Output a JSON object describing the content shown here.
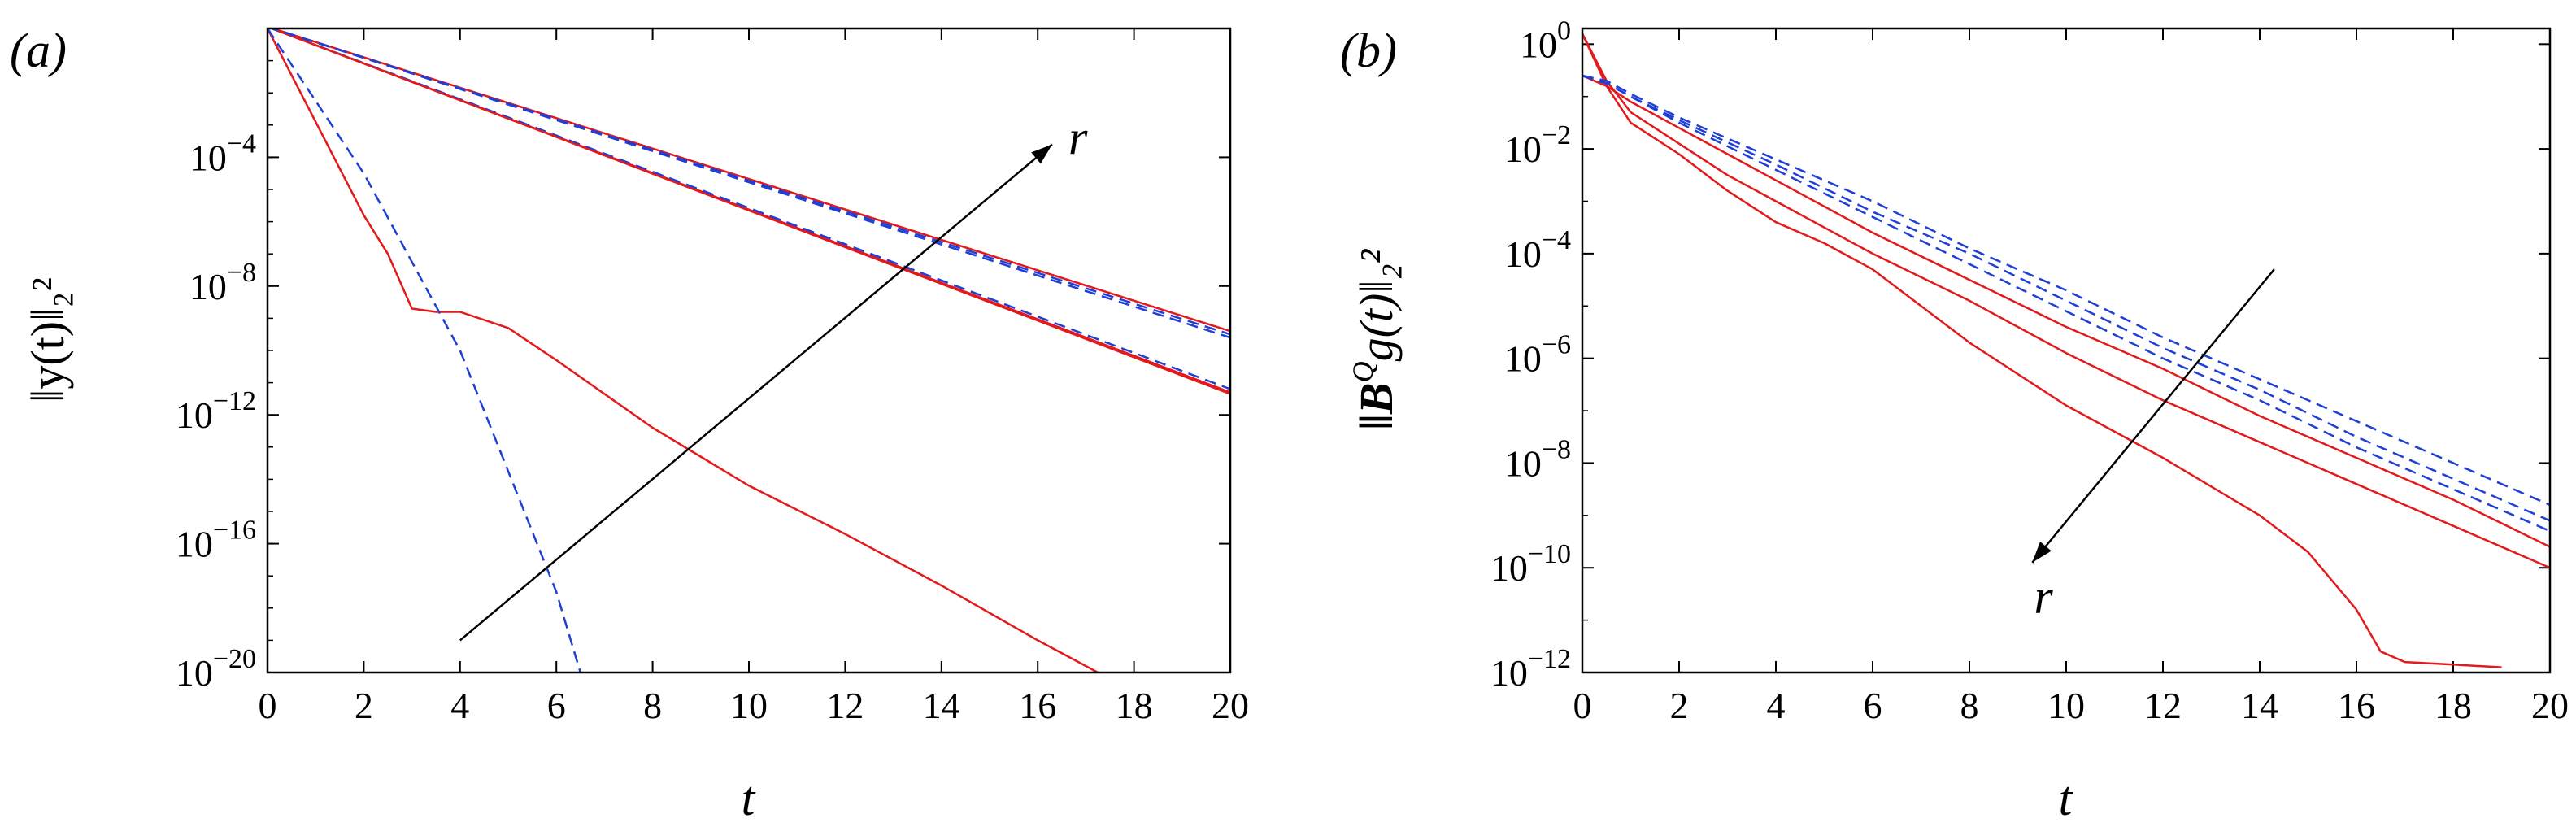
{
  "colors": {
    "red": "#e31a1c",
    "blue": "#1f3fd6",
    "black": "#000000"
  },
  "chart_data": [
    {
      "type": "line",
      "panel_label": "(a)",
      "xlabel": "t",
      "ylabel": "‖y(t)‖₂²",
      "xlim": [
        0,
        20
      ],
      "ylim_log10": [
        -20,
        0
      ],
      "yscale": "log",
      "xticks": [
        0,
        2,
        4,
        6,
        8,
        10,
        12,
        14,
        16,
        18,
        20
      ],
      "yticks_log10": [
        -4,
        -8,
        -12,
        -16,
        -20
      ],
      "ytick_base": "10",
      "ytick_labels": [
        "−4",
        "−8",
        "−12",
        "−16",
        "−20"
      ],
      "arrow": {
        "label": "r",
        "from": [
          4,
          -19
        ],
        "to": [
          16.3,
          -3.6
        ]
      },
      "series": [
        {
          "name": "red-1",
          "style": "solid",
          "color": "red",
          "x": [
            0,
            2,
            2.5,
            3,
            3.5,
            4,
            5,
            6,
            8,
            10,
            12,
            14,
            16,
            17.5
          ],
          "log10y": [
            0,
            -5.8,
            -7.0,
            -8.7,
            -8.8,
            -8.8,
            -9.3,
            -10.3,
            -12.4,
            -14.2,
            -15.7,
            -17.3,
            -19.0,
            -20.2
          ]
        },
        {
          "name": "blue-1",
          "style": "dashed",
          "color": "blue",
          "x": [
            0,
            2,
            4,
            6,
            6.5
          ],
          "log10y": [
            0,
            -4.5,
            -10.0,
            -17.5,
            -20.0
          ]
        },
        {
          "name": "red-2",
          "style": "solid",
          "color": "red",
          "x": [
            0,
            20
          ],
          "log10y": [
            0.05,
            -11.3
          ]
        },
        {
          "name": "blue-2",
          "style": "dashed",
          "color": "blue",
          "x": [
            0,
            20
          ],
          "log10y": [
            0.05,
            -11.2
          ]
        },
        {
          "name": "red-3",
          "style": "solid",
          "color": "red",
          "x": [
            0,
            20
          ],
          "log10y": [
            0.05,
            -11.35
          ]
        },
        {
          "name": "red-4",
          "style": "solid",
          "color": "red",
          "x": [
            0,
            20
          ],
          "log10y": [
            0.05,
            -9.4
          ]
        },
        {
          "name": "blue-3",
          "style": "dashed",
          "color": "blue",
          "x": [
            0,
            20
          ],
          "log10y": [
            0.05,
            -9.5
          ]
        },
        {
          "name": "blue-4",
          "style": "dashed",
          "color": "blue",
          "x": [
            0,
            20
          ],
          "log10y": [
            0.05,
            -9.6
          ]
        }
      ]
    },
    {
      "type": "line",
      "panel_label": "(b)",
      "xlabel": "t",
      "ylabel": "‖B",
      "ylabel_sup": "Q",
      "ylabel_tail": "g(t)‖₂²",
      "xlim": [
        0,
        20
      ],
      "ylim_log10": [
        -12,
        0.3
      ],
      "yscale": "log",
      "xticks": [
        0,
        2,
        4,
        6,
        8,
        10,
        12,
        14,
        16,
        18,
        20
      ],
      "yticks_log10": [
        0,
        -2,
        -4,
        -6,
        -8,
        -10,
        -12
      ],
      "ytick_base": "10",
      "ytick_labels": [
        "0",
        "−2",
        "−4",
        "−6",
        "−8",
        "−10",
        "−12"
      ],
      "arrow": {
        "label": "r",
        "from": [
          14.3,
          -4.3
        ],
        "to": [
          9.3,
          -9.9
        ]
      },
      "series": [
        {
          "name": "red-1",
          "style": "solid",
          "color": "red",
          "x": [
            0,
            0.5,
            1,
            2,
            3,
            4,
            5,
            6,
            8,
            10,
            12,
            14,
            15,
            16,
            16.5,
            17,
            18,
            19
          ],
          "log10y": [
            0.2,
            -0.8,
            -1.5,
            -2.1,
            -2.8,
            -3.4,
            -3.8,
            -4.3,
            -5.7,
            -6.9,
            -7.9,
            -9.0,
            -9.7,
            -10.8,
            -11.6,
            -11.8,
            -11.85,
            -11.9
          ]
        },
        {
          "name": "red-2",
          "style": "solid",
          "color": "red",
          "x": [
            0,
            0.5,
            1,
            2,
            3,
            4,
            6,
            8,
            10,
            12,
            14,
            16,
            18,
            20
          ],
          "log10y": [
            0.2,
            -0.7,
            -1.3,
            -1.9,
            -2.5,
            -3.0,
            -4.0,
            -4.9,
            -5.9,
            -6.8,
            -7.6,
            -8.4,
            -9.2,
            -10.0
          ]
        },
        {
          "name": "red-3",
          "style": "solid",
          "color": "red",
          "x": [
            0,
            0.5,
            1,
            2,
            3,
            4,
            6,
            8,
            10,
            12,
            14,
            16,
            18,
            20
          ],
          "log10y": [
            -0.6,
            -0.8,
            -1.1,
            -1.6,
            -2.1,
            -2.6,
            -3.6,
            -4.5,
            -5.4,
            -6.2,
            -7.1,
            -7.9,
            -8.7,
            -9.6
          ]
        },
        {
          "name": "blue-1",
          "style": "dashed",
          "color": "blue",
          "x": [
            0,
            0.5,
            1,
            2,
            4,
            6,
            8,
            10,
            12,
            14,
            16,
            18,
            20
          ],
          "log10y": [
            -0.6,
            -0.75,
            -1.0,
            -1.5,
            -2.4,
            -3.3,
            -4.2,
            -5.1,
            -6.0,
            -6.8,
            -7.7,
            -8.5,
            -9.3
          ]
        },
        {
          "name": "blue-2",
          "style": "dashed",
          "color": "blue",
          "x": [
            0,
            0.5,
            1,
            2,
            4,
            6,
            8,
            10,
            12,
            14,
            16,
            18,
            20
          ],
          "log10y": [
            -0.6,
            -0.75,
            -1.0,
            -1.45,
            -2.3,
            -3.2,
            -4.0,
            -4.9,
            -5.8,
            -6.6,
            -7.5,
            -8.3,
            -9.1
          ]
        },
        {
          "name": "blue-3",
          "style": "dashed",
          "color": "blue",
          "x": [
            0,
            0.5,
            1,
            2,
            4,
            6,
            8,
            10,
            12,
            14,
            16,
            18,
            20
          ],
          "log10y": [
            -0.6,
            -0.7,
            -0.95,
            -1.4,
            -2.2,
            -3.0,
            -3.9,
            -4.7,
            -5.6,
            -6.4,
            -7.2,
            -8.0,
            -8.8
          ]
        }
      ]
    }
  ]
}
